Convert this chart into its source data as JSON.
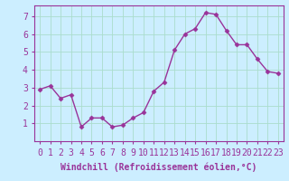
{
  "x": [
    0,
    1,
    2,
    3,
    4,
    5,
    6,
    7,
    8,
    9,
    10,
    11,
    12,
    13,
    14,
    15,
    16,
    17,
    18,
    19,
    20,
    21,
    22,
    23
  ],
  "y": [
    2.9,
    3.1,
    2.4,
    2.6,
    0.8,
    1.3,
    1.3,
    0.8,
    0.9,
    1.3,
    1.6,
    2.8,
    3.3,
    5.1,
    6.0,
    6.3,
    7.2,
    7.1,
    6.2,
    5.4,
    5.4,
    4.6,
    3.9,
    3.8
  ],
  "line_color": "#993399",
  "marker": "D",
  "marker_size": 2.5,
  "bg_color": "#cceeff",
  "grid_color": "#aaddcc",
  "xlabel": "Windchill (Refroidissement éolien,°C)",
  "xlabel_fontsize": 7,
  "xtick_labels": [
    "0",
    "1",
    "2",
    "3",
    "4",
    "5",
    "6",
    "7",
    "8",
    "9",
    "10",
    "11",
    "12",
    "13",
    "14",
    "15",
    "16",
    "17",
    "18",
    "19",
    "20",
    "21",
    "22",
    "23"
  ],
  "ylim": [
    0,
    7.6
  ],
  "yticks": [
    1,
    2,
    3,
    4,
    5,
    6,
    7
  ],
  "tick_fontsize": 7,
  "linewidth": 1.0,
  "spine_color": "#993399"
}
